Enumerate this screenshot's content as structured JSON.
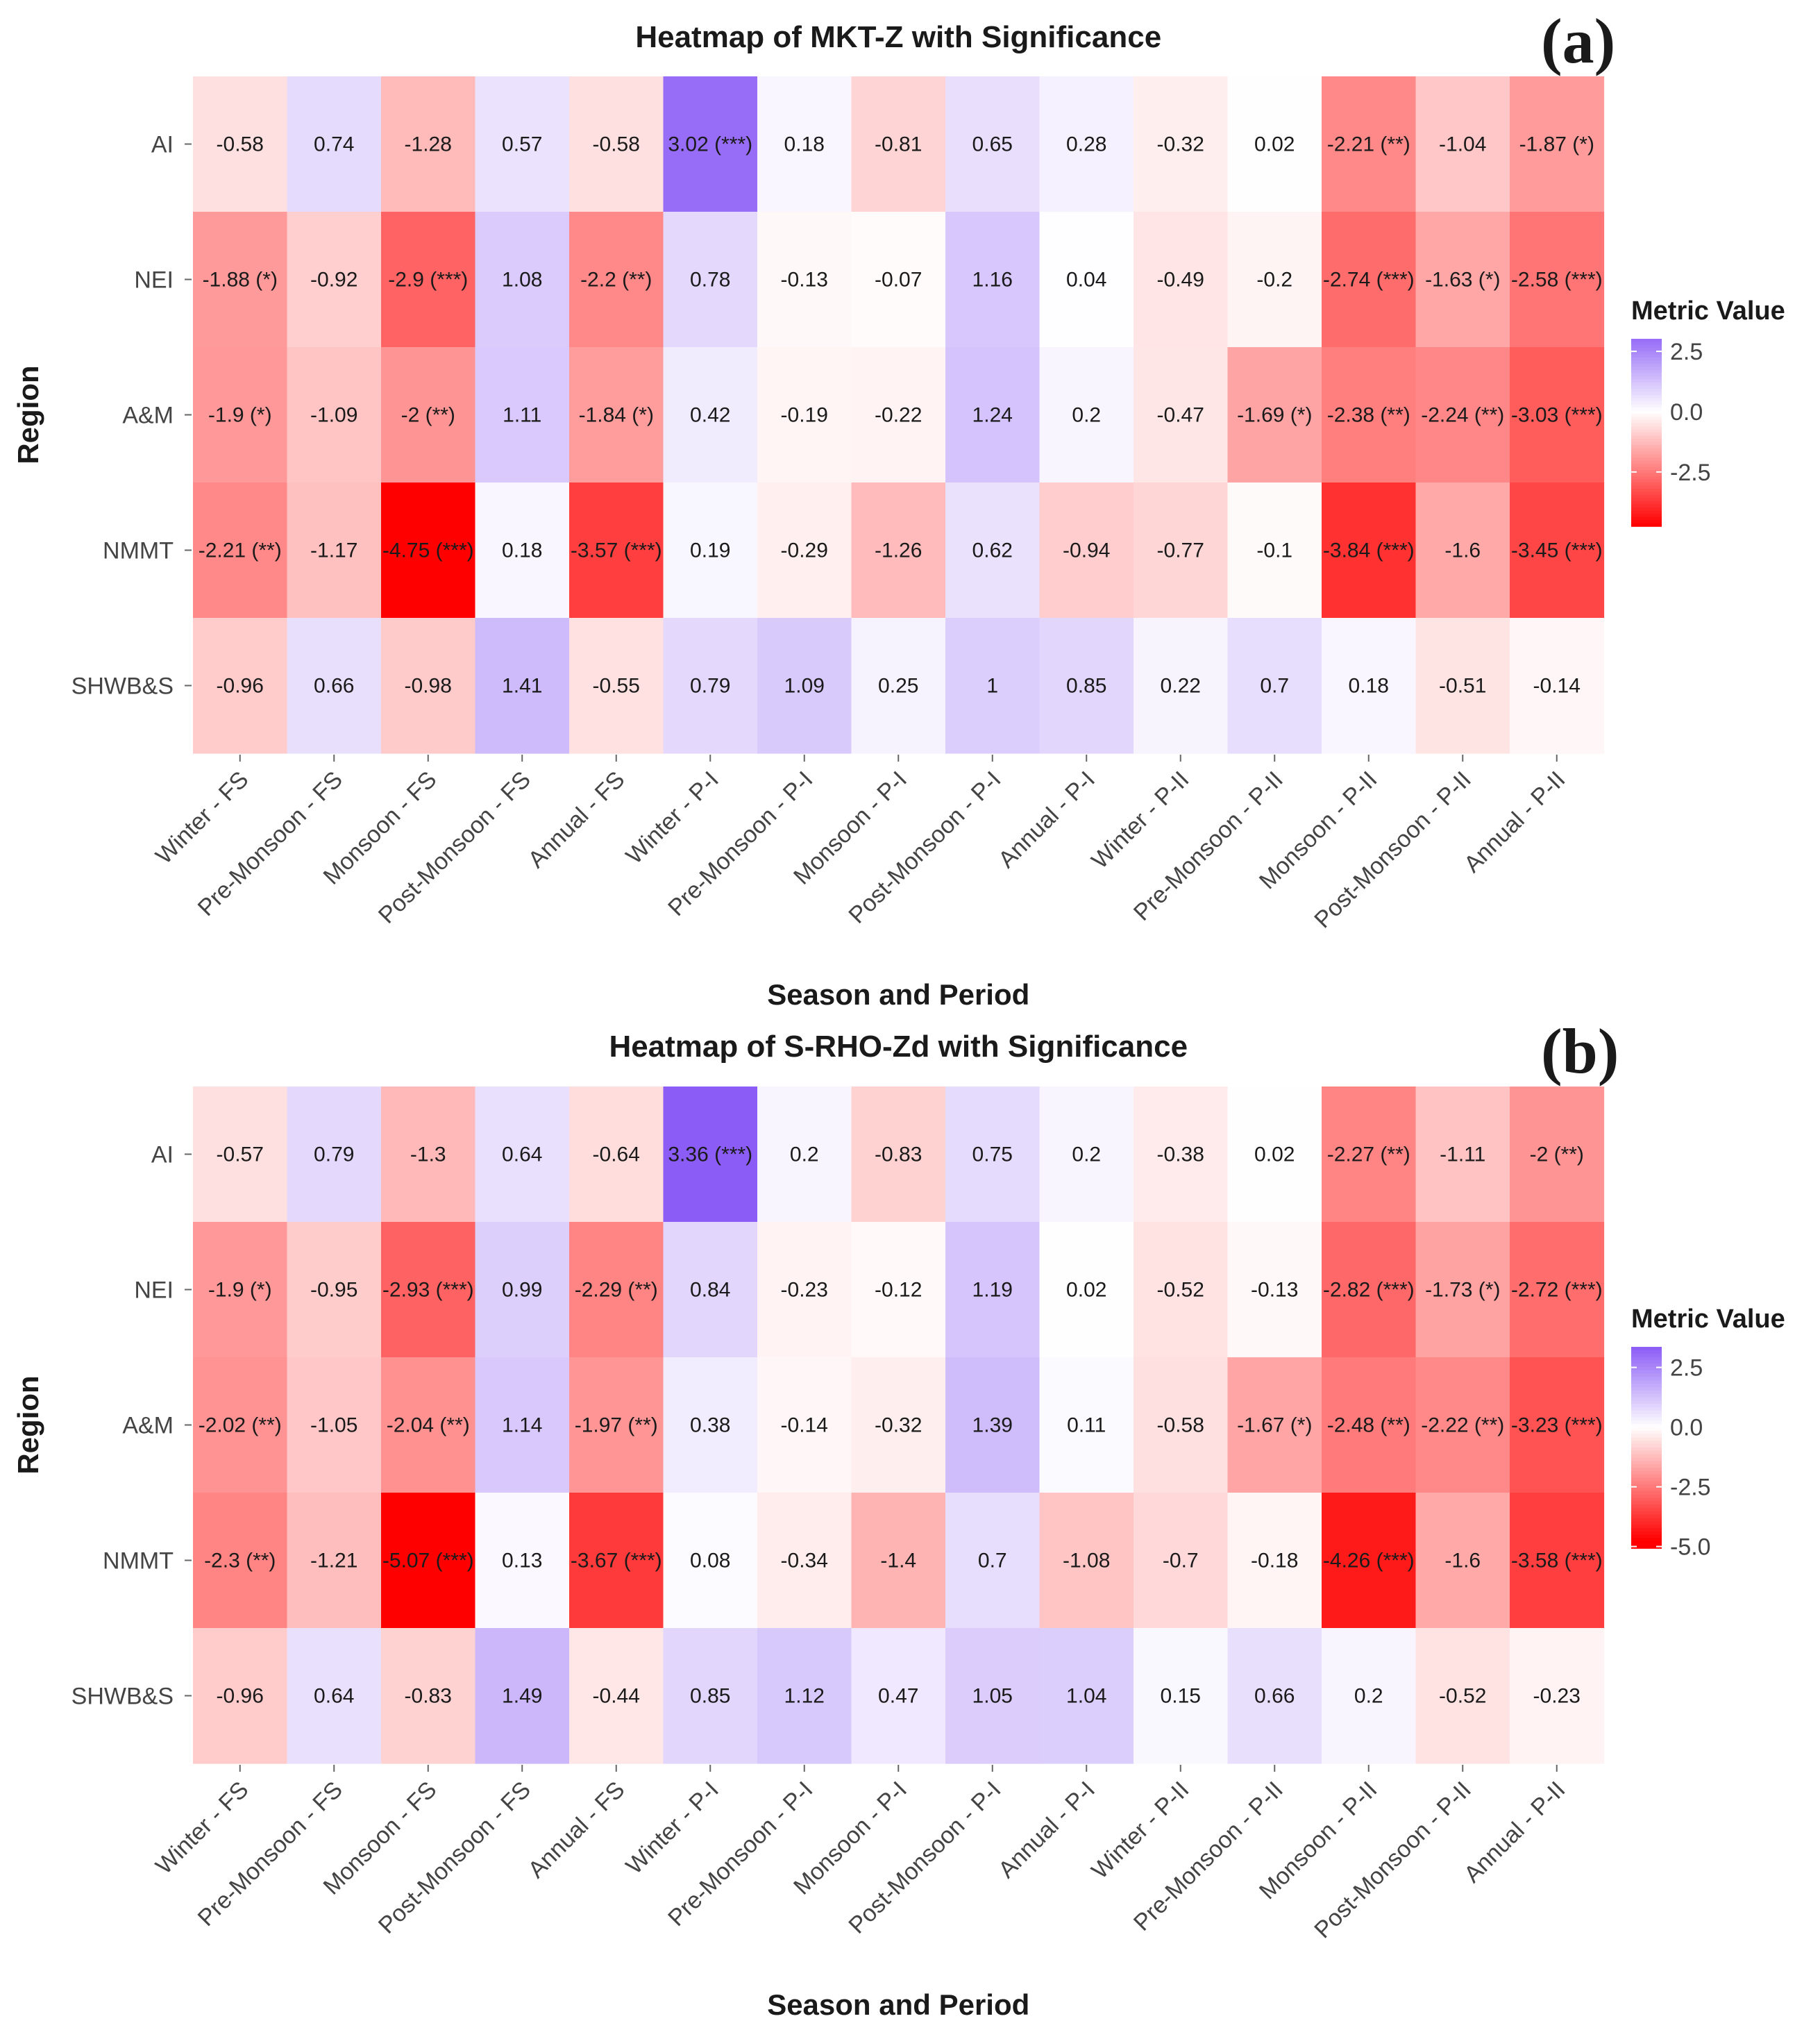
{
  "chart_data": [
    {
      "type": "heatmap",
      "panel_label": "(a)",
      "title": "Heatmap of MKT-Z with Significance",
      "xlabel": "Season and Period",
      "ylabel": "Region",
      "x_categories": [
        "Winter - FS",
        "Pre-Monsoon - FS",
        "Monsoon - FS",
        "Post-Monsoon - FS",
        "Annual - FS",
        "Winter - P-I",
        "Pre-Monsoon - P-I",
        "Monsoon - P-I",
        "Post-Monsoon - P-I",
        "Annual - P-I",
        "Winter - P-II",
        "Pre-Monsoon - P-II",
        "Monsoon - P-II",
        "Post-Monsoon - P-II",
        "Annual - P-II"
      ],
      "y_categories": [
        "AI",
        "NEI",
        "A&M",
        "NMMT",
        "SHWB&S"
      ],
      "values": [
        [
          -0.58,
          0.74,
          -1.28,
          0.57,
          -0.58,
          3.02,
          0.18,
          -0.81,
          0.65,
          0.28,
          -0.32,
          0.02,
          -2.21,
          -1.04,
          -1.87
        ],
        [
          -1.88,
          -0.92,
          -2.9,
          1.08,
          -2.2,
          0.78,
          -0.13,
          -0.07,
          1.16,
          0.04,
          -0.49,
          -0.2,
          -2.74,
          -1.63,
          -2.58
        ],
        [
          -1.9,
          -1.09,
          -2,
          1.11,
          -1.84,
          0.42,
          -0.19,
          -0.22,
          1.24,
          0.2,
          -0.47,
          -1.69,
          -2.38,
          -2.24,
          -3.03
        ],
        [
          -2.21,
          -1.17,
          -4.75,
          0.18,
          -3.57,
          0.19,
          -0.29,
          -1.26,
          0.62,
          -0.94,
          -0.77,
          -0.1,
          -3.84,
          -1.6,
          -3.45
        ],
        [
          -0.96,
          0.66,
          -0.98,
          1.41,
          -0.55,
          0.79,
          1.09,
          0.25,
          1,
          0.85,
          0.22,
          0.7,
          0.18,
          -0.51,
          -0.14
        ]
      ],
      "labels": [
        [
          "-0.58",
          "0.74",
          "-1.28",
          "0.57",
          "-0.58",
          "3.02 (***)",
          "0.18",
          "-0.81",
          "0.65",
          "0.28",
          "-0.32",
          "0.02",
          "-2.21 (**)",
          "-1.04",
          "-1.87 (*)"
        ],
        [
          "-1.88 (*)",
          "-0.92",
          "-2.9 (***)",
          "1.08",
          "-2.2 (**)",
          "0.78",
          "-0.13",
          "-0.07",
          "1.16",
          "0.04",
          "-0.49",
          "-0.2",
          "-2.74 (***)",
          "-1.63 (*)",
          "-2.58 (***)"
        ],
        [
          "-1.9 (*)",
          "-1.09",
          "-2 (**)",
          "1.11",
          "-1.84 (*)",
          "0.42",
          "-0.19",
          "-0.22",
          "1.24",
          "0.2",
          "-0.47",
          "-1.69 (*)",
          "-2.38 (**)",
          "-2.24 (**)",
          "-3.03 (***)"
        ],
        [
          "-2.21 (**)",
          "-1.17",
          "-4.75 (***)",
          "0.18",
          "-3.57 (***)",
          "0.19",
          "-0.29",
          "-1.26",
          "0.62",
          "-0.94",
          "-0.77",
          "-0.1",
          "-3.84 (***)",
          "-1.6",
          "-3.45 (***)"
        ],
        [
          "-0.96",
          "0.66",
          "-0.98",
          "1.41",
          "-0.55",
          "0.79",
          "1.09",
          "0.25",
          "1",
          "0.85",
          "0.22",
          "0.7",
          "0.18",
          "-0.51",
          "-0.14"
        ]
      ],
      "legend": {
        "title": "Metric Value",
        "ticks": [
          "2.5",
          "0.0",
          "-2.5"
        ],
        "tick_values": [
          2.5,
          0,
          -2.5
        ],
        "range": [
          -4.75,
          3.02
        ]
      },
      "colors": {
        "low": "#ff0000",
        "mid": "#ffffff",
        "high": "#8b5cf6"
      }
    },
    {
      "type": "heatmap",
      "panel_label": "(b)",
      "title": "Heatmap of S-RHO-Zd with Significance",
      "xlabel": "Season and Period",
      "ylabel": "Region",
      "x_categories": [
        "Winter - FS",
        "Pre-Monsoon - FS",
        "Monsoon - FS",
        "Post-Monsoon - FS",
        "Annual - FS",
        "Winter - P-I",
        "Pre-Monsoon - P-I",
        "Monsoon - P-I",
        "Post-Monsoon - P-I",
        "Annual - P-I",
        "Winter - P-II",
        "Pre-Monsoon - P-II",
        "Monsoon - P-II",
        "Post-Monsoon - P-II",
        "Annual - P-II"
      ],
      "y_categories": [
        "AI",
        "NEI",
        "A&M",
        "NMMT",
        "SHWB&S"
      ],
      "values": [
        [
          -0.57,
          0.79,
          -1.3,
          0.64,
          -0.64,
          3.36,
          0.2,
          -0.83,
          0.75,
          0.2,
          -0.38,
          0.02,
          -2.27,
          -1.11,
          -2
        ],
        [
          -1.9,
          -0.95,
          -2.93,
          0.99,
          -2.29,
          0.84,
          -0.23,
          -0.12,
          1.19,
          0.02,
          -0.52,
          -0.13,
          -2.82,
          -1.73,
          -2.72
        ],
        [
          -2.02,
          -1.05,
          -2.04,
          1.14,
          -1.97,
          0.38,
          -0.14,
          -0.32,
          1.39,
          0.11,
          -0.58,
          -1.67,
          -2.48,
          -2.22,
          -3.23
        ],
        [
          -2.3,
          -1.21,
          -5.07,
          0.13,
          -3.67,
          0.08,
          -0.34,
          -1.4,
          0.7,
          -1.08,
          -0.7,
          -0.18,
          -4.26,
          -1.6,
          -3.58
        ],
        [
          -0.96,
          0.64,
          -0.83,
          1.49,
          -0.44,
          0.85,
          1.12,
          0.47,
          1.05,
          1.04,
          0.15,
          0.66,
          0.2,
          -0.52,
          -0.23
        ]
      ],
      "labels": [
        [
          "-0.57",
          "0.79",
          "-1.3",
          "0.64",
          "-0.64",
          "3.36 (***)",
          "0.2",
          "-0.83",
          "0.75",
          "0.2",
          "-0.38",
          "0.02",
          "-2.27 (**)",
          "-1.11",
          "-2 (**)"
        ],
        [
          "-1.9 (*)",
          "-0.95",
          "-2.93 (***)",
          "0.99",
          "-2.29 (**)",
          "0.84",
          "-0.23",
          "-0.12",
          "1.19",
          "0.02",
          "-0.52",
          "-0.13",
          "-2.82 (***)",
          "-1.73 (*)",
          "-2.72 (***)"
        ],
        [
          "-2.02 (**)",
          "-1.05",
          "-2.04 (**)",
          "1.14",
          "-1.97 (**)",
          "0.38",
          "-0.14",
          "-0.32",
          "1.39",
          "0.11",
          "-0.58",
          "-1.67 (*)",
          "-2.48 (**)",
          "-2.22 (**)",
          "-3.23 (***)"
        ],
        [
          "-2.3 (**)",
          "-1.21",
          "-5.07 (***)",
          "0.13",
          "-3.67 (***)",
          "0.08",
          "-0.34",
          "-1.4",
          "0.7",
          "-1.08",
          "-0.7",
          "-0.18",
          "-4.26 (***)",
          "-1.6",
          "-3.58 (***)"
        ],
        [
          "-0.96",
          "0.64",
          "-0.83",
          "1.49",
          "-0.44",
          "0.85",
          "1.12",
          "0.47",
          "1.05",
          "1.04",
          "0.15",
          "0.66",
          "0.2",
          "-0.52",
          "-0.23"
        ]
      ],
      "legend": {
        "title": "Metric Value",
        "ticks": [
          "2.5",
          "0.0",
          "-2.5",
          "-5.0"
        ],
        "tick_values": [
          2.5,
          0,
          -2.5,
          -5
        ],
        "range": [
          -5.07,
          3.36
        ]
      },
      "colors": {
        "low": "#ff0000",
        "mid": "#ffffff",
        "high": "#8b5cf6"
      }
    }
  ]
}
